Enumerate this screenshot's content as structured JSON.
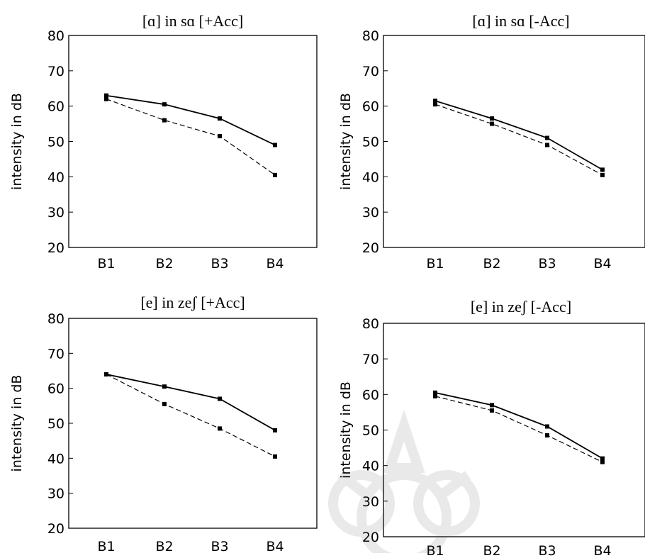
{
  "figure": {
    "panels": [
      {
        "title": "[ɑ] in sɑ [+Acc]",
        "ylabel": "intensity in dB"
      },
      {
        "title": "[ɑ] in sɑ [-Acc]",
        "ylabel": "intensity in dB"
      },
      {
        "title": "[e] in zeʃ [+Acc]",
        "ylabel": "intensity in dB"
      },
      {
        "title": "[e] in zeʃ [-Acc]",
        "ylabel": "intensity in dB"
      }
    ]
  },
  "chart_data": [
    {
      "type": "line",
      "title": "[ɑ] in sɑ [+Acc]",
      "xlabel": "",
      "ylabel": "intensity in dB",
      "categories": [
        "B1",
        "B2",
        "B3",
        "B4"
      ],
      "ylim": [
        20,
        80
      ],
      "yticks": [
        20,
        30,
        40,
        50,
        60,
        70,
        80
      ],
      "grid": false,
      "series": [
        {
          "style": "solid",
          "values": [
            63,
            60.5,
            56.5,
            49
          ]
        },
        {
          "style": "dashed",
          "values": [
            62,
            56,
            51.5,
            40.5
          ]
        }
      ]
    },
    {
      "type": "line",
      "title": "[ɑ] in sɑ [-Acc]",
      "xlabel": "",
      "ylabel": "intensity in dB",
      "categories": [
        "B1",
        "B2",
        "B3",
        "B4"
      ],
      "ylim": [
        20,
        80
      ],
      "yticks": [
        20,
        30,
        40,
        50,
        60,
        70,
        80
      ],
      "grid": false,
      "series": [
        {
          "style": "solid",
          "values": [
            61.5,
            56.5,
            51,
            42
          ]
        },
        {
          "style": "dashed",
          "values": [
            60.5,
            55,
            49,
            40.5
          ]
        }
      ]
    },
    {
      "type": "line",
      "title": "[e] in zeʃ [+Acc]",
      "xlabel": "",
      "ylabel": "intensity in dB",
      "categories": [
        "B1",
        "B2",
        "B3",
        "B4"
      ],
      "ylim": [
        20,
        80
      ],
      "yticks": [
        20,
        30,
        40,
        50,
        60,
        70,
        80
      ],
      "grid": false,
      "series": [
        {
          "style": "solid",
          "values": [
            64,
            60.5,
            57,
            48
          ]
        },
        {
          "style": "dashed",
          "values": [
            64,
            55.5,
            48.5,
            40.5
          ]
        }
      ]
    },
    {
      "type": "line",
      "title": "[e] in zeʃ [-Acc]",
      "xlabel": "",
      "ylabel": "intensity in dB",
      "categories": [
        "B1",
        "B2",
        "B3",
        "B4"
      ],
      "ylim": [
        20,
        80
      ],
      "yticks": [
        20,
        30,
        40,
        50,
        60,
        70,
        80
      ],
      "grid": false,
      "series": [
        {
          "style": "solid",
          "values": [
            60.5,
            57,
            51,
            42
          ]
        },
        {
          "style": "dashed",
          "values": [
            59.5,
            55.5,
            48.5,
            41
          ]
        }
      ]
    }
  ]
}
